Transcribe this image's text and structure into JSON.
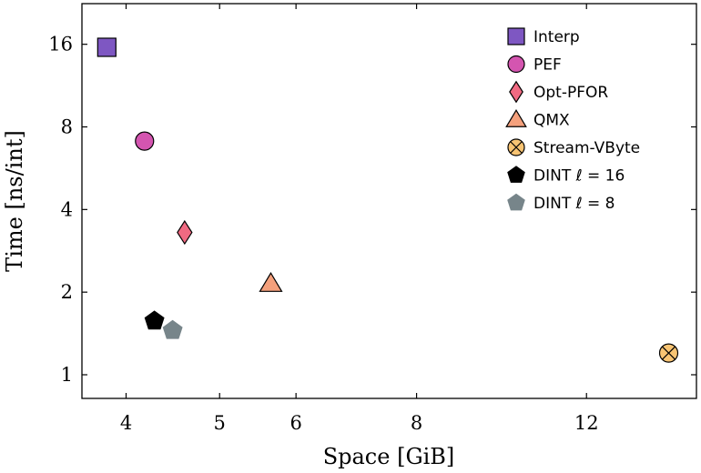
{
  "chart_data": {
    "type": "scatter",
    "title": "",
    "xlabel": "Space [GiB]",
    "ylabel": "Time [ns/int]",
    "xscale": "log",
    "yscale": "log",
    "xlim": [
      3.6,
      15.6
    ],
    "ylim": [
      0.82,
      22.5
    ],
    "xticks": [
      4,
      5,
      6,
      8,
      12
    ],
    "xtick_labels": [
      "4",
      "5",
      "6",
      "8",
      "12"
    ],
    "yticks": [
      1,
      2,
      4,
      8,
      16
    ],
    "ytick_labels": [
      "1",
      "2",
      "4",
      "8",
      "16"
    ],
    "grid": false,
    "legend_position": "top-right",
    "series": [
      {
        "name": "Interp",
        "marker": "square",
        "color": "#7e57c2",
        "x": 3.82,
        "y": 15.6
      },
      {
        "name": "PEF",
        "marker": "circle",
        "color": "#d455b0",
        "x": 4.18,
        "y": 7.1
      },
      {
        "name": "Opt-PFOR",
        "marker": "diamond",
        "color": "#f06a82",
        "x": 4.6,
        "y": 3.3
      },
      {
        "name": "QMX",
        "marker": "triangle",
        "color": "#f4a07c",
        "x": 5.65,
        "y": 2.15
      },
      {
        "name": "Stream-VByte",
        "marker": "otimes",
        "color": "#f8c473",
        "x": 14.6,
        "y": 1.2
      },
      {
        "name": "DINT ℓ = 16",
        "marker": "pentagon",
        "color": "#000000",
        "x": 4.28,
        "y": 1.57
      },
      {
        "name": "DINT ℓ = 8",
        "marker": "pentagon",
        "color": "#77858a",
        "x": 4.47,
        "y": 1.45
      }
    ]
  }
}
